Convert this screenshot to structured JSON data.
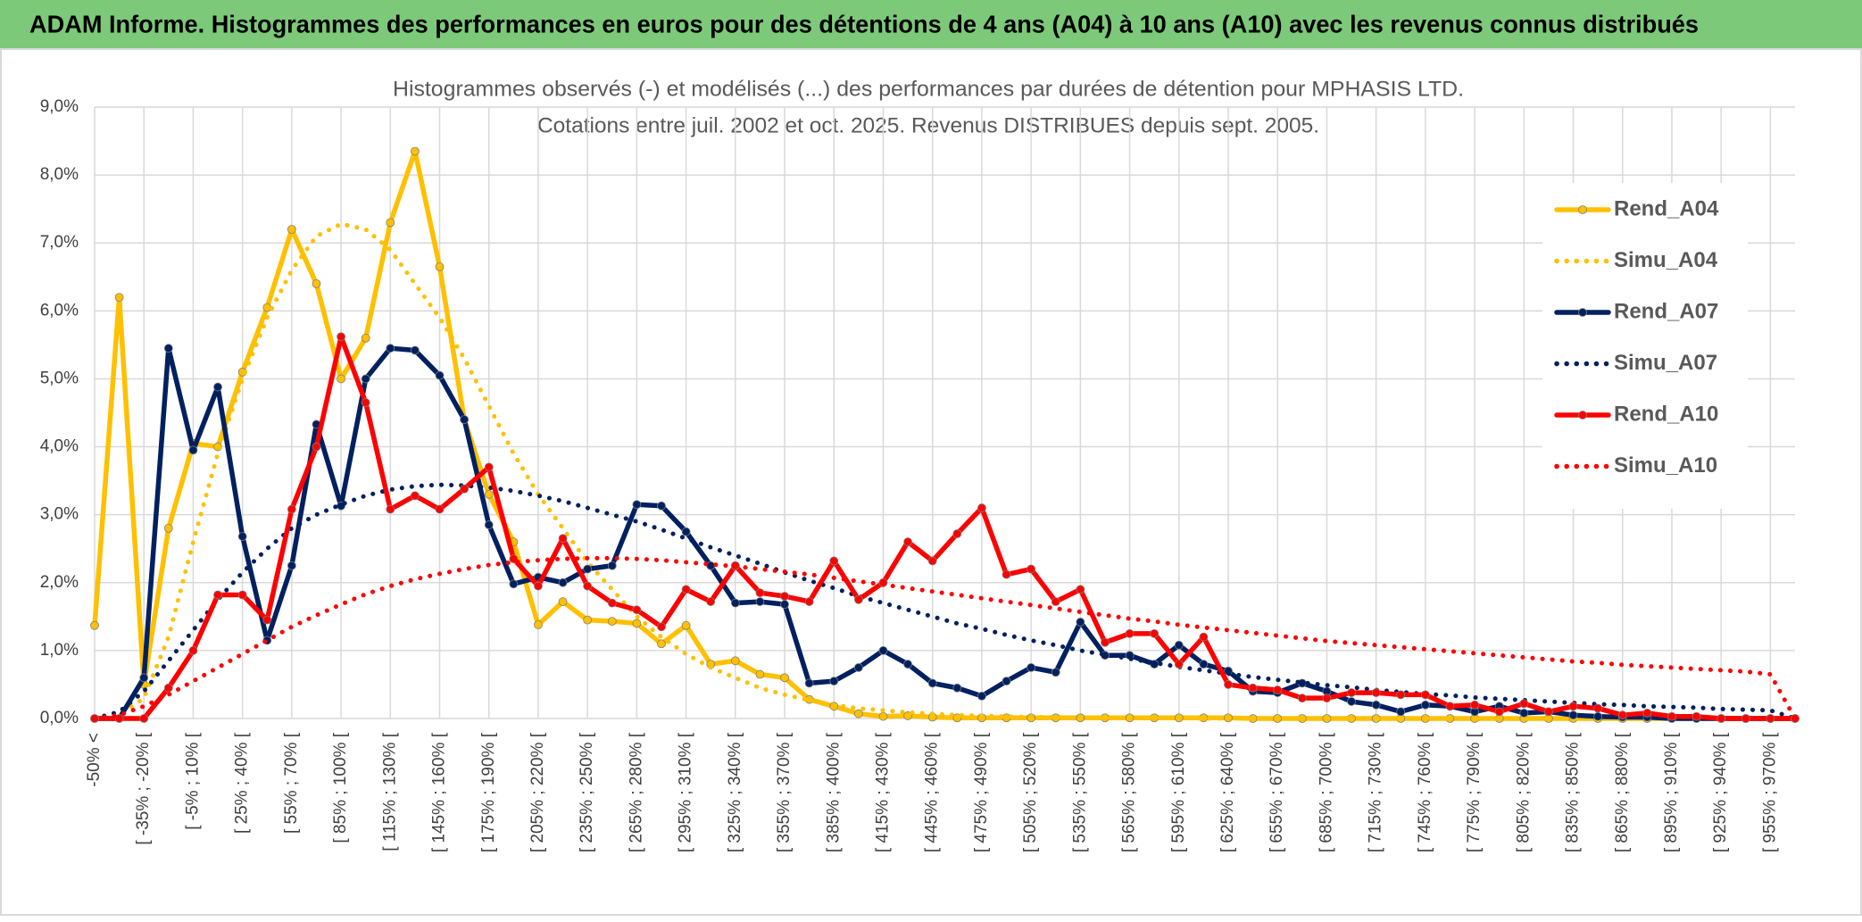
{
  "header": {
    "title": "ADAM Informe. Histogrammes des performances en euros pour des détentions de 4 ans (A04) à 10 ans (A10) avec les revenus connus distribués"
  },
  "chart_data": {
    "type": "line",
    "title": "Histogrammes observés (-) et modélisés (...) des performances par durées de détention pour MPHASIS LTD.",
    "subtitle": "Cotations entre juil. 2002 et oct. 2025. Revenus DISTRIBUES depuis sept. 2005.",
    "categories": [
      "-50% <",
      null,
      "[ -35% ; -20% [",
      null,
      "[ -5% ; 10% [",
      null,
      "[ 25% ; 40% [",
      null,
      "[ 55% ; 70% [",
      null,
      "[ 85% ; 100% [",
      null,
      "[ 115% ; 130% [",
      null,
      "[ 145% ; 160% [",
      null,
      "[ 175% ; 190% [",
      null,
      "[ 205% ; 220% [",
      null,
      "[ 235% ; 250% [",
      null,
      "[ 265% ; 280% [",
      null,
      "[ 295% ; 310% [",
      null,
      "[ 325% ; 340% [",
      null,
      "[ 355% ; 370% [",
      null,
      "[ 385% ; 400% [",
      null,
      "[ 415% ; 430% [",
      null,
      "[ 445% ; 460% [",
      null,
      "[ 475% ; 490% [",
      null,
      "[ 505% ; 520% [",
      null,
      "[ 535% ; 550% [",
      null,
      "[ 565% ; 580% [",
      null,
      "[ 595% ; 610% [",
      null,
      "[ 625% ; 640% [",
      null,
      "[ 655% ; 670% [",
      null,
      "[ 685% ; 700% [",
      null,
      "[ 715% ; 730% [",
      null,
      "[ 745% ; 760% [",
      null,
      "[ 775% ; 790% [",
      null,
      "[ 805% ; 820% [",
      null,
      "[ 835% ; 850% [",
      null,
      "[ 865% ; 880% [",
      null,
      "[ 895% ; 910% [",
      null,
      "[ 925% ; 940% [",
      null,
      "[ 955% ; 970% [",
      null
    ],
    "ylim": [
      0,
      9
    ],
    "yticks": [
      {
        "value": 0,
        "label": "0,0%"
      },
      {
        "value": 1,
        "label": "1,0%"
      },
      {
        "value": 2,
        "label": "2,0%"
      },
      {
        "value": 3,
        "label": "3,0%"
      },
      {
        "value": 4,
        "label": "4,0%"
      },
      {
        "value": 5,
        "label": "5,0%"
      },
      {
        "value": 6,
        "label": "6,0%"
      },
      {
        "value": 7,
        "label": "7,0%"
      },
      {
        "value": 8,
        "label": "8,0%"
      },
      {
        "value": 9,
        "label": "9,0%"
      }
    ],
    "grid": true,
    "legend": "right",
    "series": [
      {
        "name": "Rend_A04",
        "color": "#ffc000",
        "line_style": "solid",
        "markers": true,
        "values": [
          1.37,
          6.2,
          0.5,
          2.8,
          4.05,
          4.0,
          5.1,
          6.05,
          7.2,
          6.4,
          5.0,
          5.6,
          7.3,
          8.35,
          6.65,
          4.4,
          3.3,
          2.6,
          1.38,
          1.72,
          1.45,
          1.43,
          1.4,
          1.1,
          1.37,
          0.8,
          0.85,
          0.65,
          0.6,
          0.28,
          0.18,
          0.07,
          0.03,
          0.04,
          0.02,
          0.01,
          0.01,
          0.01,
          0.01,
          0.01,
          0.01,
          0.01,
          0.01,
          0.01,
          0.01,
          0.01,
          0.01,
          0,
          0,
          0,
          0,
          0,
          0,
          0,
          0,
          0,
          0,
          0,
          0,
          0,
          0,
          0,
          0,
          0,
          0,
          0,
          0,
          0,
          0,
          0
        ]
      },
      {
        "name": "Simu_A04",
        "color": "#ffc000",
        "line_style": "dotted",
        "markers": false,
        "values": [
          0,
          0.05,
          0.3,
          1.2,
          2.6,
          3.9,
          5.0,
          5.9,
          6.6,
          7.1,
          7.28,
          7.2,
          6.9,
          6.4,
          5.9,
          5.3,
          4.6,
          3.9,
          3.3,
          2.8,
          2.3,
          1.9,
          1.5,
          1.2,
          0.95,
          0.75,
          0.6,
          0.45,
          0.35,
          0.27,
          0.2,
          0.15,
          0.12,
          0.09,
          0.07,
          0.05,
          0.04,
          0.03,
          0.02,
          0.02,
          0.01,
          0.01,
          0.01,
          0.01,
          0.01,
          0,
          0,
          0,
          0,
          0,
          0,
          0,
          0,
          0,
          0,
          0,
          0,
          0,
          0,
          0,
          0,
          0,
          0,
          0,
          0,
          0,
          0,
          0,
          0,
          0
        ]
      },
      {
        "name": "Rend_A07",
        "color": "#002060",
        "line_style": "solid",
        "markers": true,
        "values": [
          0,
          0,
          0.6,
          5.45,
          3.95,
          4.88,
          2.68,
          1.15,
          2.25,
          4.33,
          3.13,
          5.0,
          5.45,
          5.42,
          5.05,
          4.4,
          2.85,
          1.98,
          2.08,
          2.0,
          2.2,
          2.25,
          3.15,
          3.13,
          2.75,
          2.25,
          1.7,
          1.72,
          1.68,
          0.52,
          0.55,
          0.75,
          1.0,
          0.8,
          0.52,
          0.45,
          0.33,
          0.55,
          0.75,
          0.68,
          1.42,
          0.93,
          0.93,
          0.8,
          1.08,
          0.8,
          0.7,
          0.4,
          0.38,
          0.52,
          0.4,
          0.25,
          0.2,
          0.1,
          0.2,
          0.18,
          0.1,
          0.18,
          0.08,
          0.1,
          0.05,
          0.03,
          0.02,
          0.02,
          0,
          0,
          0,
          0,
          0,
          0
        ]
      },
      {
        "name": "Simu_A07",
        "color": "#002060",
        "line_style": "dotted",
        "markers": false,
        "values": [
          0,
          0.1,
          0.4,
          0.85,
          1.3,
          1.75,
          2.15,
          2.5,
          2.8,
          3.0,
          3.15,
          3.28,
          3.37,
          3.42,
          3.44,
          3.43,
          3.4,
          3.35,
          3.28,
          3.2,
          3.1,
          3.0,
          2.9,
          2.78,
          2.65,
          2.52,
          2.4,
          2.28,
          2.15,
          2.03,
          1.92,
          1.8,
          1.7,
          1.6,
          1.5,
          1.4,
          1.32,
          1.23,
          1.15,
          1.08,
          1.0,
          0.94,
          0.88,
          0.82,
          0.76,
          0.71,
          0.66,
          0.61,
          0.57,
          0.53,
          0.49,
          0.46,
          0.42,
          0.39,
          0.36,
          0.34,
          0.31,
          0.29,
          0.27,
          0.25,
          0.23,
          0.21,
          0.2,
          0.18,
          0.17,
          0.16,
          0.14,
          0.13,
          0.12,
          0
        ]
      },
      {
        "name": "Rend_A10",
        "color": "#ff0000",
        "line_style": "solid",
        "markers": true,
        "values": [
          0,
          0,
          0,
          0.45,
          1.0,
          1.82,
          1.82,
          1.45,
          3.08,
          4.0,
          5.62,
          4.65,
          3.08,
          3.28,
          3.08,
          3.38,
          3.7,
          2.35,
          1.95,
          2.65,
          1.95,
          1.7,
          1.6,
          1.35,
          1.9,
          1.72,
          2.25,
          1.85,
          1.8,
          1.72,
          2.32,
          1.75,
          2.0,
          2.6,
          2.32,
          2.72,
          3.1,
          2.12,
          2.2,
          1.72,
          1.9,
          1.12,
          1.25,
          1.25,
          0.8,
          1.2,
          0.5,
          0.45,
          0.42,
          0.3,
          0.3,
          0.38,
          0.38,
          0.35,
          0.35,
          0.18,
          0.2,
          0.1,
          0.22,
          0.1,
          0.18,
          0.15,
          0.05,
          0.08,
          0.03,
          0.03,
          0,
          0,
          0,
          0
        ]
      },
      {
        "name": "Simu_A10",
        "color": "#ff0000",
        "line_style": "dotted",
        "markers": false,
        "values": [
          0,
          0.05,
          0.18,
          0.35,
          0.55,
          0.75,
          0.95,
          1.15,
          1.35,
          1.52,
          1.68,
          1.83,
          1.95,
          2.05,
          2.13,
          2.2,
          2.26,
          2.3,
          2.33,
          2.35,
          2.36,
          2.36,
          2.35,
          2.33,
          2.3,
          2.27,
          2.24,
          2.2,
          2.16,
          2.12,
          2.07,
          2.02,
          1.97,
          1.92,
          1.87,
          1.82,
          1.77,
          1.72,
          1.67,
          1.62,
          1.57,
          1.52,
          1.47,
          1.43,
          1.38,
          1.34,
          1.3,
          1.26,
          1.22,
          1.18,
          1.14,
          1.11,
          1.08,
          1.05,
          1.02,
          0.99,
          0.96,
          0.93,
          0.9,
          0.87,
          0.84,
          0.82,
          0.79,
          0.77,
          0.75,
          0.73,
          0.71,
          0.69,
          0.65,
          0
        ]
      }
    ]
  }
}
